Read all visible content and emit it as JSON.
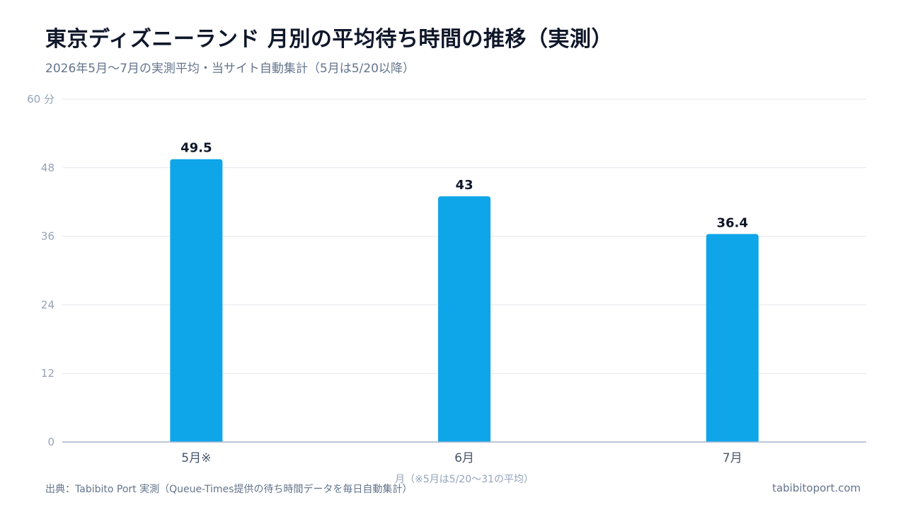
{
  "header": {
    "title": "東京ディズニーランド 月別の平均待ち時間の推移（実測）",
    "subtitle": "2026年5月〜7月の実測平均・当サイト自動集計（5月は5/20以降）"
  },
  "footer": {
    "source": "出典：Tabibito Port 実測（Queue-Times提供の待ち時間データを毎日自動集計）",
    "site": "tabibitoport.com"
  },
  "chart_data": {
    "type": "bar",
    "categories": [
      "5月※",
      "6月",
      "7月"
    ],
    "values": [
      49.5,
      43,
      36.4
    ],
    "value_labels": [
      "49.5",
      "43",
      "36.4"
    ],
    "xlabel": "月（※5月は5/20〜31の平均）",
    "ylabel": "",
    "ylim": [
      0,
      60
    ],
    "yticks": [
      0,
      12,
      24,
      36,
      48,
      60
    ],
    "ytick_labels": [
      "0",
      "12",
      "24",
      "36",
      "48",
      "60 分"
    ],
    "grid": true,
    "legend": "none",
    "bar_color": "#0ea5e9",
    "grid_color": "#e5e7eb",
    "axis_color": "#a5b4cc"
  }
}
